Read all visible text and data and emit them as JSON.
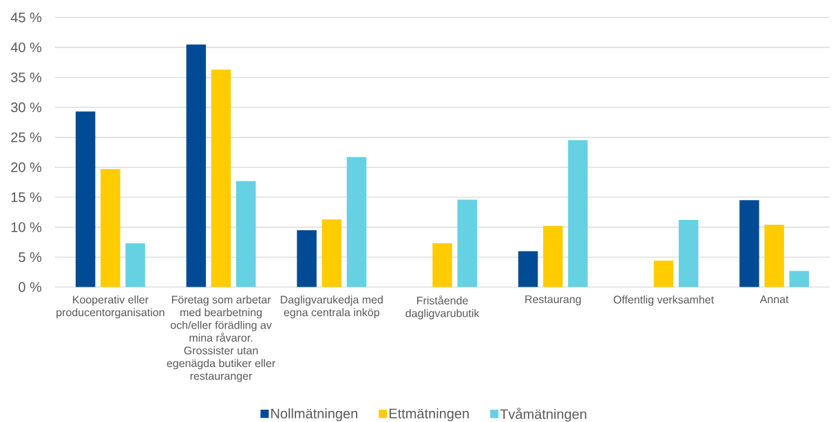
{
  "chart_data": {
    "type": "bar",
    "categories": [
      "Kooperativ eller producentorganisation",
      "Företag som arbetar med bearbetning och/eller förädling av mina råvaror. Grossister utan egenägda butiker eller restauranger",
      "Dagligvarukedja med egna centrala inköp",
      "Fristående dagligvarubutik",
      "Restaurang",
      "Offentlig verksamhet",
      "Annat"
    ],
    "series": [
      {
        "name": "Nollmätningen",
        "color": "#004b93",
        "values": [
          29.3,
          40.5,
          9.5,
          null,
          6.0,
          null,
          14.5
        ]
      },
      {
        "name": "Ettmätningen",
        "color": "#ffcc00",
        "values": [
          19.7,
          36.3,
          11.3,
          7.3,
          10.2,
          4.4,
          10.4
        ]
      },
      {
        "name": "Tvåmätningen",
        "color": "#65d1e3",
        "values": [
          7.3,
          17.7,
          21.7,
          14.6,
          24.5,
          11.2,
          2.7
        ]
      }
    ],
    "ylim": [
      0,
      45
    ],
    "yticks": [
      {
        "value": 0,
        "label": "0 %"
      },
      {
        "value": 5,
        "label": "5 %"
      },
      {
        "value": 10,
        "label": "10 %"
      },
      {
        "value": 15,
        "label": "15 %"
      },
      {
        "value": 20,
        "label": "20 %"
      },
      {
        "value": 25,
        "label": "25 %"
      },
      {
        "value": 30,
        "label": "30 %"
      },
      {
        "value": 35,
        "label": "35 %"
      },
      {
        "value": 40,
        "label": "40 %"
      },
      {
        "value": 45,
        "label": "45 %"
      }
    ],
    "grid": "y",
    "legend": "bottom"
  }
}
